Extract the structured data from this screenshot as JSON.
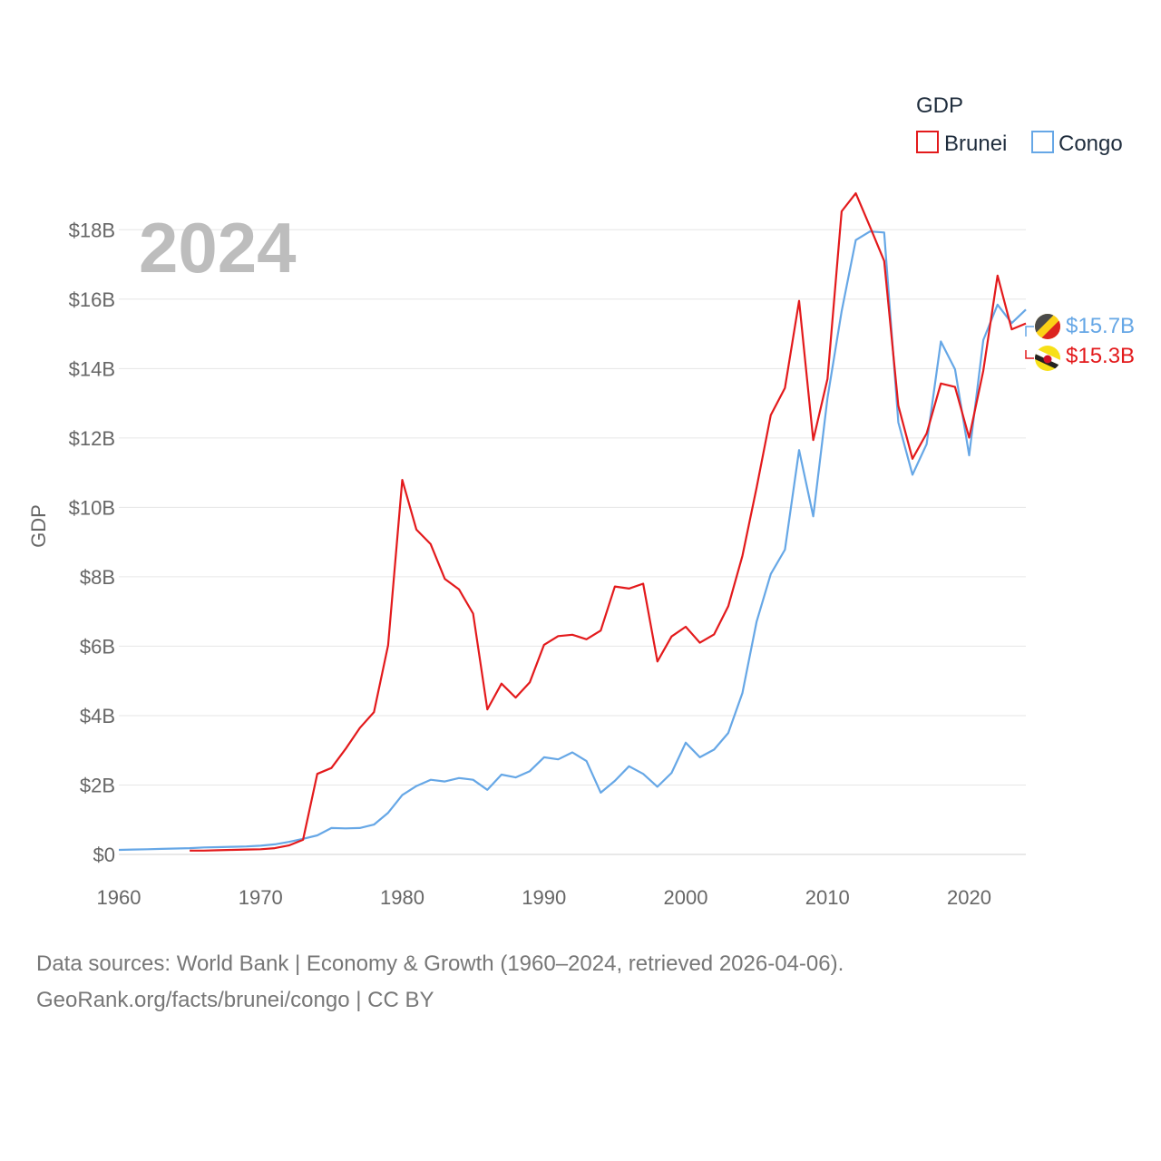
{
  "chart_data": {
    "type": "line",
    "title": "GDP",
    "current_year": "2024",
    "ylabel": "GDP",
    "xlabel": "",
    "xlim": [
      1960,
      2024
    ],
    "ylim": [
      0,
      19
    ],
    "x_ticks": [
      {
        "value": 1960,
        "label": "1960"
      },
      {
        "value": 1970,
        "label": "1970"
      },
      {
        "value": 1980,
        "label": "1980"
      },
      {
        "value": 1990,
        "label": "1990"
      },
      {
        "value": 2000,
        "label": "2000"
      },
      {
        "value": 2010,
        "label": "2010"
      },
      {
        "value": 2020,
        "label": "2020"
      }
    ],
    "y_ticks": [
      {
        "value": 0,
        "label": "$0"
      },
      {
        "value": 2,
        "label": "$2B"
      },
      {
        "value": 4,
        "label": "$4B"
      },
      {
        "value": 6,
        "label": "$6B"
      },
      {
        "value": 8,
        "label": "$8B"
      },
      {
        "value": 10,
        "label": "$10B"
      },
      {
        "value": 12,
        "label": "$12B"
      },
      {
        "value": 14,
        "label": "$14B"
      },
      {
        "value": 16,
        "label": "$16B"
      },
      {
        "value": 18,
        "label": "$18B"
      }
    ],
    "legend": {
      "title": "GDP",
      "position": "top-right"
    },
    "series": [
      {
        "name": "Brunei",
        "color": "#e31a1c",
        "flag": "brunei-flag-icon",
        "end_label": "$15.3B",
        "x": [
          1965,
          1966,
          1967,
          1968,
          1969,
          1970,
          1971,
          1972,
          1973,
          1974,
          1975,
          1976,
          1977,
          1978,
          1979,
          1980,
          1981,
          1982,
          1983,
          1984,
          1985,
          1986,
          1987,
          1988,
          1989,
          1990,
          1991,
          1992,
          1993,
          1994,
          1995,
          1996,
          1997,
          1998,
          1999,
          2000,
          2001,
          2002,
          2003,
          2004,
          2005,
          2006,
          2007,
          2008,
          2009,
          2010,
          2011,
          2012,
          2013,
          2014,
          2015,
          2016,
          2017,
          2018,
          2019,
          2020,
          2021,
          2022,
          2023,
          2024
        ],
        "values": [
          0.11,
          0.11,
          0.12,
          0.13,
          0.14,
          0.15,
          0.18,
          0.26,
          0.42,
          2.32,
          2.49,
          3.04,
          3.64,
          4.1,
          6.03,
          10.79,
          9.36,
          8.94,
          7.94,
          7.64,
          6.94,
          4.18,
          4.92,
          4.52,
          4.96,
          6.04,
          6.29,
          6.33,
          6.2,
          6.45,
          7.72,
          7.66,
          7.8,
          5.56,
          6.28,
          6.56,
          6.1,
          6.34,
          7.15,
          8.6,
          10.56,
          12.66,
          13.44,
          15.95,
          11.94,
          13.7,
          18.53,
          19.05,
          18.09,
          17.1,
          12.93,
          11.4,
          12.13,
          13.57,
          13.47,
          12.01,
          13.94,
          16.68,
          15.13,
          15.3
        ]
      },
      {
        "name": "Congo",
        "color": "#66a7e6",
        "flag": "congo-flag-icon",
        "end_label": "$15.7B",
        "x": [
          1960,
          1961,
          1962,
          1963,
          1964,
          1965,
          1966,
          1967,
          1968,
          1969,
          1970,
          1971,
          1972,
          1973,
          1974,
          1975,
          1976,
          1977,
          1978,
          1979,
          1980,
          1981,
          1982,
          1983,
          1984,
          1985,
          1986,
          1987,
          1988,
          1989,
          1990,
          1991,
          1992,
          1993,
          1994,
          1995,
          1996,
          1997,
          1998,
          1999,
          2000,
          2001,
          2002,
          2003,
          2004,
          2005,
          2006,
          2007,
          2008,
          2009,
          2010,
          2011,
          2012,
          2013,
          2014,
          2015,
          2016,
          2017,
          2018,
          2019,
          2020,
          2021,
          2022,
          2023,
          2024
        ],
        "values": [
          0.13,
          0.14,
          0.15,
          0.16,
          0.17,
          0.18,
          0.2,
          0.21,
          0.22,
          0.23,
          0.25,
          0.29,
          0.36,
          0.45,
          0.55,
          0.76,
          0.75,
          0.76,
          0.86,
          1.2,
          1.71,
          1.97,
          2.15,
          2.1,
          2.2,
          2.15,
          1.86,
          2.3,
          2.22,
          2.4,
          2.8,
          2.74,
          2.94,
          2.69,
          1.78,
          2.12,
          2.54,
          2.32,
          1.95,
          2.35,
          3.22,
          2.8,
          3.02,
          3.5,
          4.65,
          6.7,
          8.08,
          8.78,
          11.65,
          9.74,
          13.15,
          15.65,
          17.7,
          17.95,
          17.92,
          12.45,
          10.94,
          11.82,
          14.78,
          13.98,
          11.5,
          14.82,
          15.84,
          15.31,
          15.7
        ]
      }
    ]
  },
  "footer": {
    "line1": "Data sources: World Bank | Economy & Growth (1960–2024, retrieved 2026-04-06).",
    "line2": "GeoRank.org/facts/brunei/congo | CC BY"
  }
}
